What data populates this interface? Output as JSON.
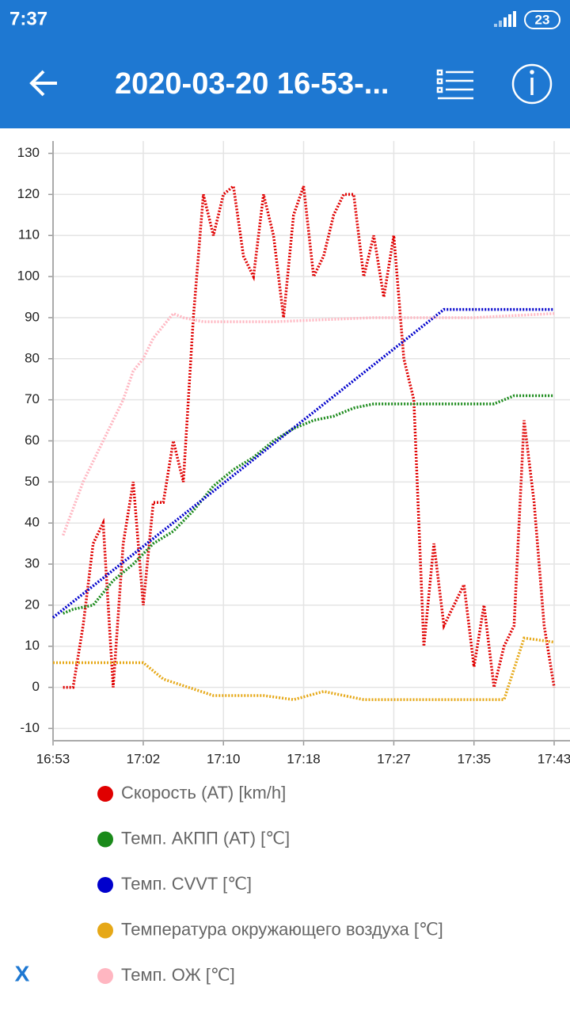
{
  "status_bar": {
    "time": "7:37",
    "battery": "23"
  },
  "app_bar": {
    "title": "2020-03-20 16-53-..."
  },
  "chart_data": {
    "type": "line",
    "xlim": [
      "16:53",
      "17:43"
    ],
    "xticks": [
      "16:53",
      "17:02",
      "17:10",
      "17:18",
      "17:27",
      "17:35",
      "17:43"
    ],
    "ylim": [
      -13,
      133
    ],
    "yticks": [
      -10,
      0,
      10,
      20,
      30,
      40,
      50,
      60,
      70,
      80,
      90,
      100,
      110,
      120,
      130
    ],
    "grid": true,
    "series": [
      {
        "name": "Скорость (AT) [km/h]",
        "color": "#e00000",
        "x": [
          "16:54",
          "16:55",
          "16:56",
          "16:57",
          "16:58",
          "16:59",
          "17:00",
          "17:01",
          "17:02",
          "17:03",
          "17:04",
          "17:05",
          "17:06",
          "17:07",
          "17:08",
          "17:09",
          "17:10",
          "17:11",
          "17:12",
          "17:13",
          "17:14",
          "17:15",
          "17:16",
          "17:17",
          "17:18",
          "17:19",
          "17:20",
          "17:21",
          "17:22",
          "17:23",
          "17:24",
          "17:25",
          "17:26",
          "17:27",
          "17:28",
          "17:29",
          "17:30",
          "17:31",
          "17:32",
          "17:33",
          "17:34",
          "17:35",
          "17:36",
          "17:37",
          "17:38",
          "17:39",
          "17:40",
          "17:41",
          "17:42",
          "17:43"
        ],
        "values": [
          0,
          0,
          15,
          35,
          40,
          0,
          35,
          50,
          20,
          45,
          45,
          60,
          50,
          90,
          120,
          110,
          120,
          122,
          105,
          100,
          120,
          110,
          90,
          115,
          122,
          100,
          105,
          115,
          120,
          120,
          100,
          110,
          95,
          110,
          80,
          70,
          10,
          35,
          15,
          20,
          25,
          5,
          20,
          0,
          10,
          15,
          65,
          45,
          15,
          0
        ]
      },
      {
        "name": "Темп. АКПП (AT) [℃]",
        "color": "#1a8a1a",
        "x": [
          "16:54",
          "16:55",
          "16:57",
          "16:59",
          "17:01",
          "17:03",
          "17:05",
          "17:07",
          "17:09",
          "17:11",
          "17:13",
          "17:15",
          "17:17",
          "17:19",
          "17:21",
          "17:23",
          "17:25",
          "17:28",
          "17:31",
          "17:35",
          "17:37",
          "17:39",
          "17:43"
        ],
        "values": [
          18,
          19,
          20,
          26,
          30,
          35,
          38,
          43,
          49,
          53,
          56,
          60,
          63,
          65,
          66,
          68,
          69,
          69,
          69,
          69,
          69,
          71,
          71
        ]
      },
      {
        "name": "Темп. CVVT [℃]",
        "color": "#0000cc",
        "x": [
          "16:53",
          "17:32",
          "17:43"
        ],
        "values": [
          17,
          92,
          92
        ]
      },
      {
        "name": "Температура окружающего воздуха [℃]",
        "color": "#e6a817",
        "x": [
          "16:53",
          "17:02",
          "17:04",
          "17:09",
          "17:14",
          "17:17",
          "17:20",
          "17:24",
          "17:30",
          "17:38",
          "17:40",
          "17:43"
        ],
        "values": [
          6,
          6,
          2,
          -2,
          -2,
          -3,
          -1,
          -3,
          -3,
          -3,
          12,
          11
        ]
      },
      {
        "name": "Темп. ОЖ [℃]",
        "color": "#ffb6c1",
        "x": [
          "16:54",
          "16:56",
          "16:58",
          "17:00",
          "17:01",
          "17:02",
          "17:03",
          "17:04",
          "17:05",
          "17:06",
          "17:08",
          "17:15",
          "17:25",
          "17:35",
          "17:43"
        ],
        "values": [
          37,
          50,
          60,
          70,
          77,
          80,
          85,
          88,
          91,
          90,
          89,
          89,
          90,
          90,
          91
        ]
      }
    ]
  },
  "close_button": "X"
}
